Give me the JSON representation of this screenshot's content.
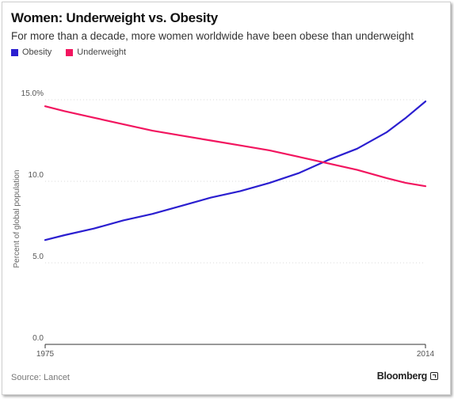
{
  "header": {
    "title": "Women: Underweight vs. Obesity",
    "subtitle": "For more than a decade, more women worldwide have been obese than underweight"
  },
  "legend": [
    {
      "label": "Obesity",
      "color": "#2b1fd0"
    },
    {
      "label": "Underweight",
      "color": "#f2155f"
    }
  ],
  "footer": {
    "source": "Source: Lancet",
    "brand": "Bloomberg",
    "brand_icon": "external-link-icon"
  },
  "chart_data": {
    "type": "line",
    "title": "Women: Underweight vs. Obesity",
    "subtitle": "For more than a decade, more women worldwide have been obese than underweight",
    "xlabel": "",
    "ylabel": "Percent of global population",
    "x_tick_labels": [
      "1975",
      "2014"
    ],
    "y_tick_labels": [
      "0.0",
      "5.0",
      "10.0",
      "15.0%"
    ],
    "y_ticks": [
      0,
      5,
      10,
      15
    ],
    "xlim": [
      1975,
      2014
    ],
    "ylim": [
      0,
      15
    ],
    "grid": "horizontal dotted",
    "legend_position": "top-left",
    "x": [
      1975,
      1977,
      1980,
      1983,
      1986,
      1989,
      1992,
      1995,
      1998,
      2001,
      2004,
      2007,
      2010,
      2012,
      2014
    ],
    "series": [
      {
        "name": "Obesity",
        "color": "#2b1fd0",
        "values": [
          6.4,
          6.7,
          7.1,
          7.6,
          8.0,
          8.5,
          9.0,
          9.4,
          9.9,
          10.5,
          11.3,
          12.0,
          13.0,
          13.9,
          14.9
        ]
      },
      {
        "name": "Underweight",
        "color": "#f2155f",
        "values": [
          14.6,
          14.3,
          13.9,
          13.5,
          13.1,
          12.8,
          12.5,
          12.2,
          11.9,
          11.5,
          11.1,
          10.7,
          10.2,
          9.9,
          9.7
        ]
      }
    ]
  }
}
